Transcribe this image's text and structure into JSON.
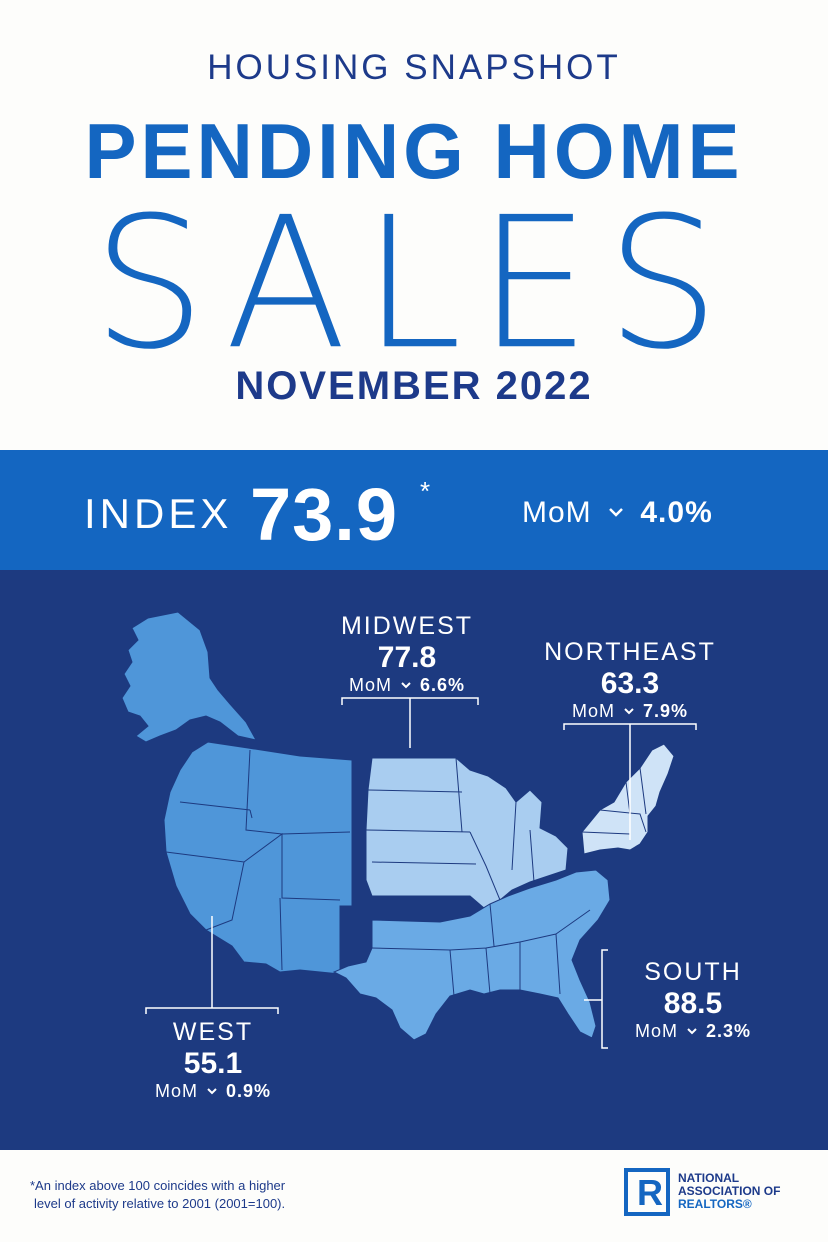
{
  "header": {
    "kicker": "HOUSING SNAPSHOT",
    "title_bold": "PENDING HOME",
    "title_thin": "SALES",
    "period": "NOVEMBER 2022"
  },
  "index": {
    "label": "INDEX",
    "value": "73.9",
    "footnote_marker": "*",
    "mom_label": "MoM",
    "mom_direction": "down",
    "mom_value": "4.0%"
  },
  "regions": {
    "midwest": {
      "name": "MIDWEST",
      "value": "77.8",
      "mom_label": "MoM",
      "mom_direction": "down",
      "mom_value": "6.6%"
    },
    "northeast": {
      "name": "NORTHEAST",
      "value": "63.3",
      "mom_label": "MoM",
      "mom_direction": "down",
      "mom_value": "7.9%"
    },
    "south": {
      "name": "SOUTH",
      "value": "88.5",
      "mom_label": "MoM",
      "mom_direction": "down",
      "mom_value": "2.3%"
    },
    "west": {
      "name": "WEST",
      "value": "55.1",
      "mom_label": "MoM",
      "mom_direction": "down",
      "mom_value": "0.9%"
    }
  },
  "footnote": {
    "line1": "*An index above 100 coincides with a higher",
    "line2": "level of activity relative to 2001 (2001=100)."
  },
  "logo": {
    "mark": "R",
    "line1": "NATIONAL",
    "line2": "ASSOCIATION OF",
    "line3": "REALTORS®"
  },
  "colors": {
    "brand_blue": "#1466c1",
    "navy": "#1d3a80",
    "west": "#4f96d9",
    "midwest": "#a9cdf0",
    "northeast": "#cfe3f7",
    "south": "#6aaae5"
  },
  "icons": [
    "chevron-down-icon",
    "us-map-icon",
    "nar-logo-icon"
  ]
}
